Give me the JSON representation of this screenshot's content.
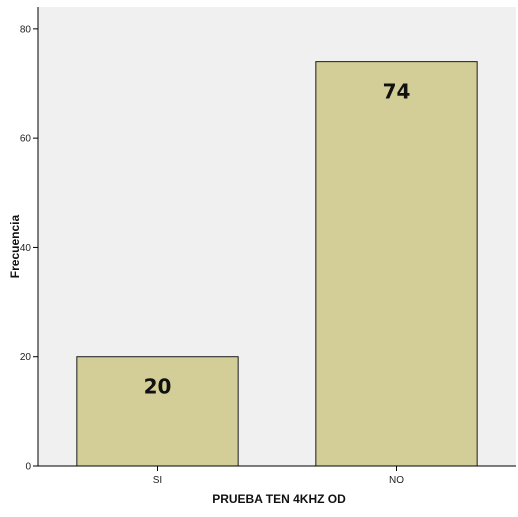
{
  "chart_data": {
    "type": "bar",
    "categories": [
      "SI",
      "NO"
    ],
    "values": [
      20,
      74
    ],
    "data_labels": [
      "20",
      "74"
    ],
    "xlabel": "PRUEBA  TEN  4KHZ  OD",
    "ylabel": "Frecuencia",
    "ylim": [
      0,
      84
    ],
    "yticks": [
      0,
      20,
      40,
      60,
      80
    ],
    "grid": false,
    "colors": {
      "bar_fill": "#d3ce97",
      "bar_stroke": "#1a1a1a",
      "plot_background": "#f0f0f0"
    }
  }
}
